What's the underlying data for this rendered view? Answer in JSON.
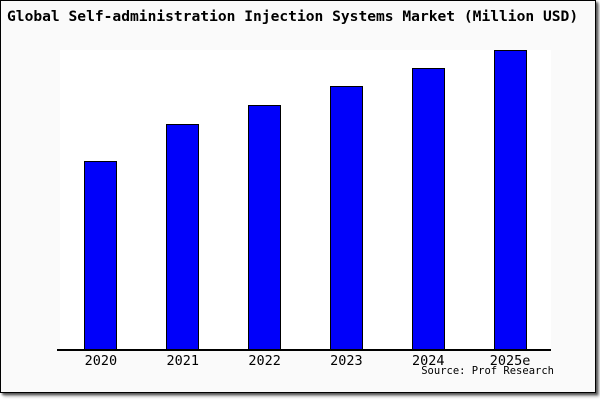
{
  "figure": {
    "title": "Global Self-administration Injection Systems Market (Million USD)",
    "source_note": "Source: Prof Research",
    "background_color": "#fafafa",
    "plot_background_color": "#ffffff",
    "frame_border_color": "#000000"
  },
  "chart_data": {
    "type": "bar",
    "title": "Global Self-administration Injection Systems Market (Million USD)",
    "categories": [
      "2020",
      "2021",
      "2022",
      "2023",
      "2024",
      "2025e"
    ],
    "values": [
      62.9,
      75.2,
      81.6,
      87.8,
      93.9,
      100
    ],
    "values_note": "y-axis is unlabeled; values are relative bar heights as % of the 2025e bar",
    "xlabel": "",
    "ylabel": "",
    "ylim": [
      0,
      100
    ],
    "grid": false,
    "legend": false,
    "y_axis_visible": false,
    "bar_color": "#0000fa",
    "bar_edge_color": "#000000",
    "source": "Source: Prof Research"
  }
}
